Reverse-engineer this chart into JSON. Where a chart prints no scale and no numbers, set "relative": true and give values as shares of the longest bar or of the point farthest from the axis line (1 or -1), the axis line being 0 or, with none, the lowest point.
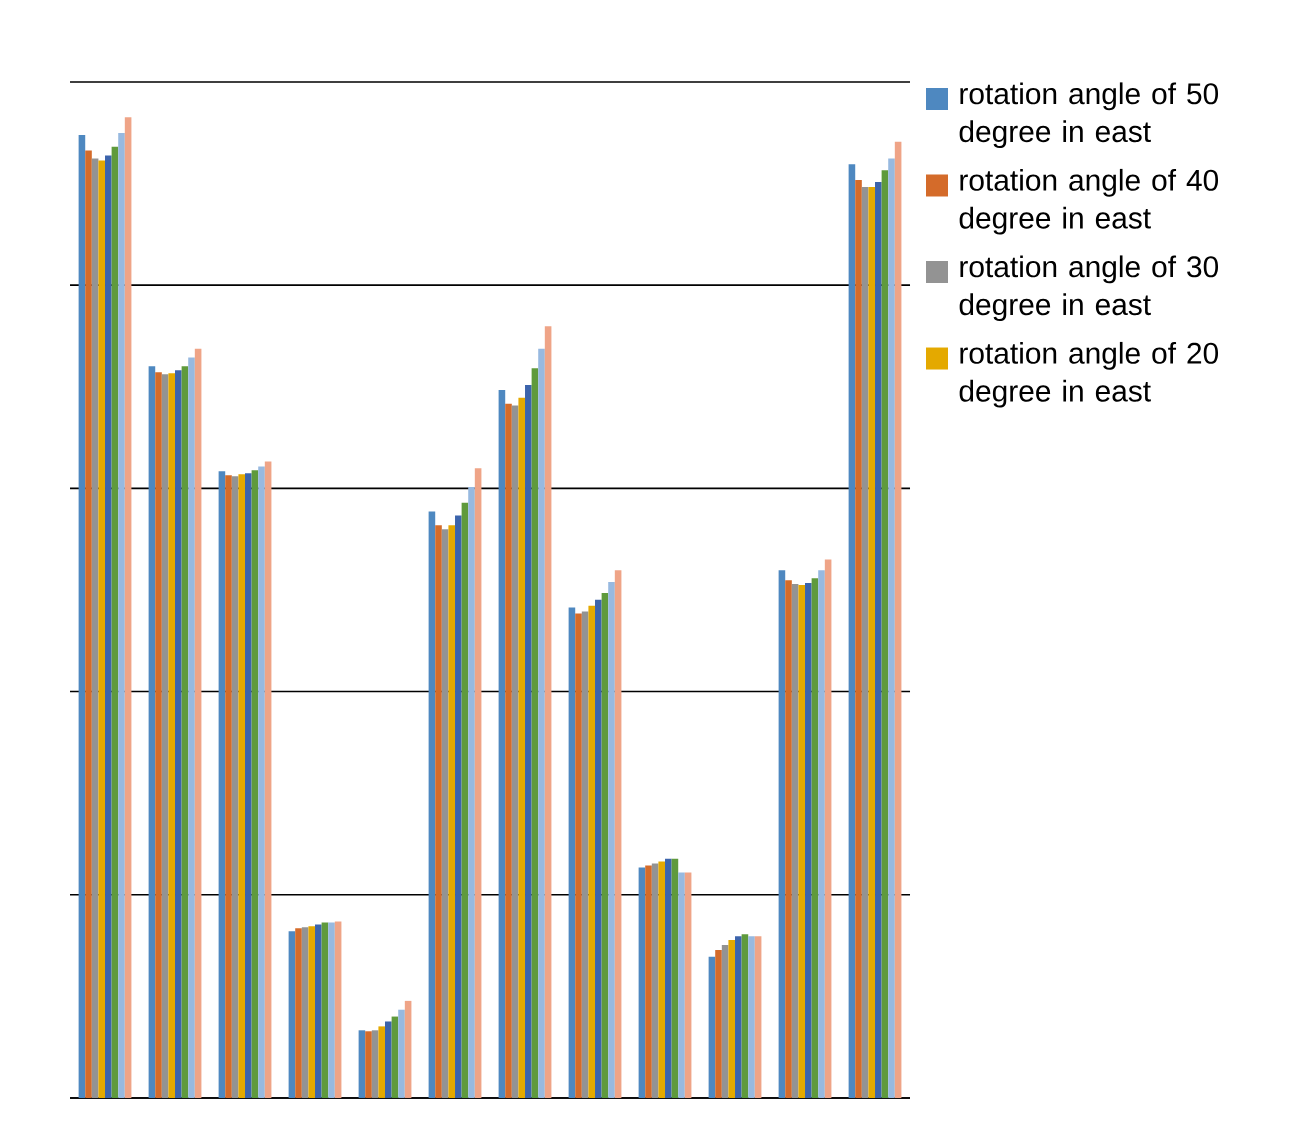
{
  "chart_data": {
    "type": "bar",
    "relative": true,
    "grid": "y",
    "legend": "right",
    "categories": [
      null,
      null,
      null,
      null,
      null,
      null,
      null,
      null,
      null,
      null,
      null,
      null
    ],
    "series": [
      {
        "name": "rotation angle of 50 degree in east",
        "color": "#4e88c0",
        "values": [
          0.982,
          0.746,
          0.639,
          0.17,
          0.069,
          0.598,
          0.722,
          0.5,
          0.235,
          0.144,
          0.538,
          0.952
        ]
      },
      {
        "name": "rotation angle of 40 degree in east",
        "color": "#d46b2a",
        "values": [
          0.966,
          0.74,
          0.635,
          0.173,
          0.068,
          0.584,
          0.708,
          0.494,
          0.237,
          0.151,
          0.528,
          0.936
        ]
      },
      {
        "name": "rotation angle of 30 degree in east",
        "color": "#939393",
        "values": [
          0.958,
          0.738,
          0.634,
          0.174,
          0.069,
          0.58,
          0.706,
          0.496,
          0.239,
          0.156,
          0.524,
          0.929
        ]
      },
      {
        "name": "rotation angle of 20 degree in east",
        "color": "#e4a900",
        "values": [
          0.956,
          0.739,
          0.636,
          0.175,
          0.073,
          0.584,
          0.714,
          0.502,
          0.241,
          0.161,
          0.523,
          0.929
        ]
      },
      {
        "color": "#3c64ac",
        "values": [
          0.961,
          0.742,
          0.637,
          0.177,
          0.078,
          0.594,
          0.727,
          0.508,
          0.244,
          0.165,
          0.525,
          0.934
        ]
      },
      {
        "color": "#5f9a3c",
        "values": [
          0.97,
          0.746,
          0.64,
          0.179,
          0.083,
          0.607,
          0.744,
          0.515,
          0.244,
          0.167,
          0.53,
          0.946
        ]
      },
      {
        "color": "#97b9e0",
        "values": [
          0.984,
          0.755,
          0.644,
          0.179,
          0.09,
          0.623,
          0.764,
          0.526,
          0.23,
          0.165,
          0.538,
          0.958
        ]
      },
      {
        "color": "#efa487",
        "values": [
          1,
          0.764,
          0.649,
          0.18,
          0.099,
          0.642,
          0.787,
          0.538,
          0.23,
          0.165,
          0.549,
          0.975
        ]
      }
    ]
  }
}
